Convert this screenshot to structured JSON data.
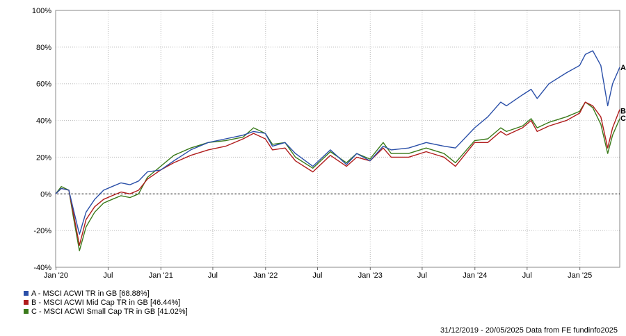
{
  "chart_data": {
    "type": "line",
    "y_ticks": [
      "100%",
      "80%",
      "60%",
      "40%",
      "20%",
      "0%",
      "-20%",
      "-40%"
    ],
    "y_values": [
      100,
      80,
      60,
      40,
      20,
      0,
      -20,
      -40
    ],
    "ylim": [
      -40,
      100
    ],
    "x_ticks": [
      "Jan '20",
      "Jul",
      "Jan '21",
      "Jul",
      "Jan '22",
      "Jul",
      "Jan '23",
      "Jul",
      "Jan '24",
      "Jul",
      "Jan '25"
    ],
    "x_tick_dates": [
      "2020-01-01",
      "2020-07-01",
      "2021-01-01",
      "2021-07-01",
      "2022-01-01",
      "2022-07-01",
      "2023-01-01",
      "2023-07-01",
      "2024-01-01",
      "2024-07-01",
      "2025-01-01"
    ],
    "x_range": [
      "2019-12-31",
      "2025-05-20"
    ],
    "grid": true,
    "series": [
      {
        "name": "A - MSCI ACWI TR in GB [68.88%]",
        "end_label": "A",
        "color": "#2a4fa8",
        "x": [
          "2019-12-31",
          "2020-01-20",
          "2020-02-15",
          "2020-03-01",
          "2020-03-23",
          "2020-04-15",
          "2020-05-15",
          "2020-06-15",
          "2020-07-15",
          "2020-08-15",
          "2020-09-15",
          "2020-10-15",
          "2020-11-15",
          "2020-12-31",
          "2021-02-15",
          "2021-04-15",
          "2021-06-15",
          "2021-08-15",
          "2021-10-15",
          "2021-11-20",
          "2021-12-31",
          "2022-01-25",
          "2022-03-10",
          "2022-04-15",
          "2022-06-15",
          "2022-08-15",
          "2022-10-10",
          "2022-11-15",
          "2022-12-31",
          "2023-02-15",
          "2023-03-15",
          "2023-05-15",
          "2023-07-15",
          "2023-09-15",
          "2023-10-25",
          "2023-12-31",
          "2024-02-15",
          "2024-03-31",
          "2024-04-20",
          "2024-06-15",
          "2024-07-15",
          "2024-08-05",
          "2024-09-15",
          "2024-11-15",
          "2024-12-31",
          "2025-01-20",
          "2025-02-15",
          "2025-03-15",
          "2025-04-08",
          "2025-04-25",
          "2025-05-20"
        ],
        "y": [
          0,
          3,
          2,
          -8,
          -22,
          -10,
          -3,
          2,
          4,
          6,
          5,
          7,
          12,
          13,
          18,
          24,
          28,
          30,
          32,
          34,
          33,
          26,
          28,
          22,
          15,
          24,
          16,
          22,
          18,
          26,
          24,
          25,
          28,
          26,
          25,
          36,
          42,
          50,
          48,
          54,
          57,
          52,
          60,
          66,
          70,
          76,
          78,
          70,
          48,
          60,
          69
        ]
      },
      {
        "name": "B - MSCI ACWI Mid Cap TR in GB [46.44%]",
        "end_label": "B",
        "color": "#b01c1c",
        "x": [
          "2019-12-31",
          "2020-01-20",
          "2020-02-15",
          "2020-03-01",
          "2020-03-23",
          "2020-04-15",
          "2020-05-15",
          "2020-06-15",
          "2020-07-15",
          "2020-08-15",
          "2020-09-15",
          "2020-10-15",
          "2020-11-15",
          "2020-12-31",
          "2021-02-15",
          "2021-04-15",
          "2021-06-15",
          "2021-08-15",
          "2021-10-15",
          "2021-11-20",
          "2021-12-31",
          "2022-01-25",
          "2022-03-10",
          "2022-04-15",
          "2022-06-15",
          "2022-08-15",
          "2022-10-10",
          "2022-11-15",
          "2022-12-31",
          "2023-02-15",
          "2023-03-15",
          "2023-05-15",
          "2023-07-15",
          "2023-09-15",
          "2023-10-25",
          "2023-12-31",
          "2024-02-15",
          "2024-03-31",
          "2024-04-20",
          "2024-06-15",
          "2024-07-15",
          "2024-08-05",
          "2024-09-15",
          "2024-11-15",
          "2024-12-31",
          "2025-01-20",
          "2025-02-15",
          "2025-03-15",
          "2025-04-08",
          "2025-04-25",
          "2025-05-20"
        ],
        "y": [
          0,
          3,
          2,
          -10,
          -28,
          -14,
          -7,
          -3,
          -1,
          1,
          0,
          2,
          8,
          13,
          17,
          21,
          24,
          26,
          30,
          33,
          30,
          24,
          25,
          18,
          12,
          21,
          15,
          20,
          18,
          25,
          20,
          20,
          23,
          20,
          15,
          28,
          28,
          34,
          32,
          36,
          40,
          34,
          37,
          40,
          44,
          50,
          48,
          42,
          25,
          36,
          46
        ]
      },
      {
        "name": "C - MSCI ACWI Small Cap TR in GB [41.02%]",
        "end_label": "C",
        "color": "#3a7a1a",
        "x": [
          "2019-12-31",
          "2020-01-20",
          "2020-02-15",
          "2020-03-01",
          "2020-03-23",
          "2020-04-15",
          "2020-05-15",
          "2020-06-15",
          "2020-07-15",
          "2020-08-15",
          "2020-09-15",
          "2020-10-15",
          "2020-11-15",
          "2020-12-31",
          "2021-02-15",
          "2021-04-15",
          "2021-06-15",
          "2021-08-15",
          "2021-10-15",
          "2021-11-20",
          "2021-12-31",
          "2022-01-25",
          "2022-03-10",
          "2022-04-15",
          "2022-06-15",
          "2022-08-15",
          "2022-10-10",
          "2022-11-15",
          "2022-12-31",
          "2023-02-15",
          "2023-03-15",
          "2023-05-15",
          "2023-07-15",
          "2023-09-15",
          "2023-10-25",
          "2023-12-31",
          "2024-02-15",
          "2024-03-31",
          "2024-04-20",
          "2024-06-15",
          "2024-07-15",
          "2024-08-05",
          "2024-09-15",
          "2024-11-15",
          "2024-12-31",
          "2025-01-20",
          "2025-02-15",
          "2025-03-15",
          "2025-04-08",
          "2025-04-25",
          "2025-05-20"
        ],
        "y": [
          0,
          4,
          2,
          -12,
          -31,
          -18,
          -10,
          -5,
          -3,
          -1,
          -2,
          0,
          9,
          15,
          21,
          25,
          28,
          29,
          31,
          36,
          33,
          27,
          28,
          20,
          14,
          23,
          17,
          22,
          19,
          28,
          22,
          22,
          25,
          22,
          17,
          29,
          30,
          36,
          34,
          37,
          41,
          36,
          39,
          42,
          45,
          50,
          47,
          38,
          22,
          32,
          41
        ]
      }
    ]
  },
  "footer": {
    "text": "31/12/2019 - 20/05/2025 Data from FE fundinfo2025"
  }
}
